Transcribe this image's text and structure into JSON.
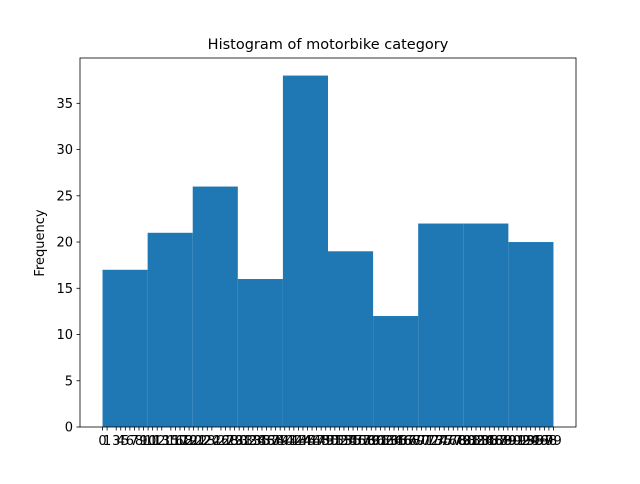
{
  "chart_data": {
    "type": "bar",
    "title": "Histogram of motorbike category",
    "xlabel": "",
    "ylabel": "Frequency",
    "bin_edges": [
      0,
      9.9,
      19.8,
      29.7,
      39.6,
      49.5,
      59.4,
      69.3,
      79.2,
      89.1,
      99
    ],
    "values": [
      17,
      21,
      26,
      16,
      38,
      19,
      12,
      22,
      22,
      20
    ],
    "xlim": [
      -4.95,
      103.95
    ],
    "ylim": [
      0,
      39.9
    ],
    "yticks": [
      0,
      5,
      10,
      15,
      20,
      25,
      30,
      35
    ],
    "xticks": [
      "0",
      "1",
      "3",
      "4",
      "5",
      "6",
      "7",
      "8",
      "9",
      "10",
      "11",
      "12",
      "13",
      "15",
      "16",
      "17",
      "18",
      "19",
      "20",
      "21",
      "22",
      "23",
      "24",
      "26",
      "27",
      "28",
      "29",
      "30",
      "31",
      "32",
      "33",
      "34",
      "35",
      "36",
      "37",
      "38",
      "39",
      "40",
      "41",
      "42",
      "43",
      "44",
      "45",
      "46",
      "47",
      "48",
      "49",
      "50",
      "51",
      "52",
      "53",
      "54",
      "55",
      "56",
      "57",
      "58",
      "59",
      "60",
      "61",
      "62",
      "63",
      "64",
      "65",
      "66",
      "67",
      "68",
      "69",
      "70",
      "71",
      "72",
      "73",
      "74",
      "75",
      "76",
      "77",
      "78",
      "79",
      "80",
      "81",
      "82",
      "83",
      "84",
      "85",
      "86",
      "87",
      "88",
      "89",
      "90",
      "91",
      "92",
      "93",
      "94",
      "95",
      "96",
      "97",
      "98",
      "99"
    ],
    "bar_color": "#1f77b4",
    "grid": false,
    "legend": "none"
  }
}
